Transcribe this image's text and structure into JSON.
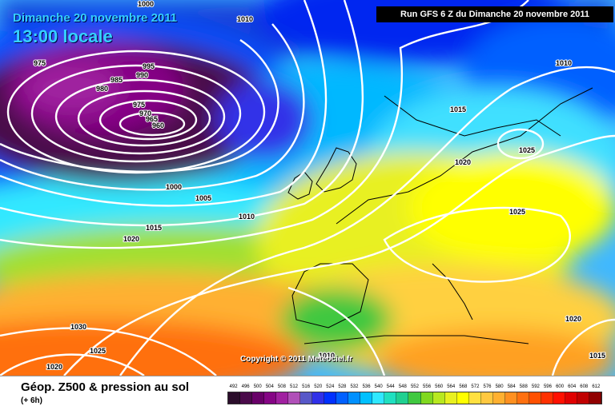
{
  "header": {
    "date": "Dimanche 20 novembre 2011",
    "time": "13:00 locale",
    "run": "Run GFS 6 Z du Dimanche 20 novembre 2011"
  },
  "copyright": "Copyright © 2011 Meteociel.fr",
  "legend": {
    "title": "Géop. Z500 & pression au sol",
    "subtitle": "(+ 6h)",
    "scale_values": [
      "492",
      "496",
      "500",
      "504",
      "508",
      "512",
      "516",
      "520",
      "524",
      "528",
      "532",
      "536",
      "540",
      "544",
      "548",
      "552",
      "556",
      "560",
      "564",
      "568",
      "572",
      "576",
      "580",
      "584",
      "588",
      "592",
      "596",
      "600",
      "604",
      "608",
      "612"
    ],
    "scale_colors": [
      "#2b0d2b",
      "#4a0a4a",
      "#680068",
      "#850585",
      "#a020a0",
      "#b050b8",
      "#5858c8",
      "#3030e8",
      "#0030ff",
      "#0060ff",
      "#0090ff",
      "#00c0ff",
      "#30e8ff",
      "#20e0c0",
      "#20d090",
      "#40c840",
      "#80d820",
      "#b8e820",
      "#e8f020",
      "#ffff00",
      "#ffe040",
      "#ffc840",
      "#ffb030",
      "#ff9020",
      "#ff7010",
      "#ff5000",
      "#ff3000",
      "#ff1000",
      "#e00000",
      "#c00000",
      "#900000"
    ]
  },
  "isobar_labels": [
    "1000",
    "975",
    "995",
    "990",
    "985",
    "980",
    "975",
    "970",
    "965",
    "960",
    "1000",
    "1005",
    "1010",
    "1015",
    "1020",
    "1010",
    "1015",
    "1020",
    "1025",
    "1025",
    "1010",
    "1020",
    "1030",
    "1025",
    "1020",
    "1010",
    "1015"
  ]
}
